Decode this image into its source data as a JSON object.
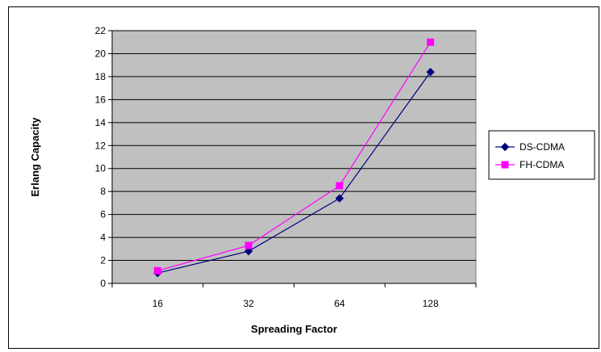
{
  "chart_data": {
    "type": "line",
    "categories": [
      "16",
      "32",
      "64",
      "128"
    ],
    "series": [
      {
        "name": "DS-CDMA",
        "values": [
          0.9,
          2.8,
          7.4,
          18.4
        ],
        "color": "#000080",
        "marker": "diamond"
      },
      {
        "name": "FH-CDMA",
        "values": [
          1.1,
          3.3,
          8.5,
          21.0
        ],
        "color": "#ff00ff",
        "marker": "square"
      }
    ],
    "title": "",
    "xlabel": "Spreading Factor",
    "ylabel": "Erlang Capacity",
    "ylim": [
      0,
      22
    ],
    "yticks": [
      0,
      2,
      4,
      6,
      8,
      10,
      12,
      14,
      16,
      18,
      20,
      22
    ],
    "grid": true,
    "plot_background": "#c0c0c0",
    "legend_position": "right"
  }
}
